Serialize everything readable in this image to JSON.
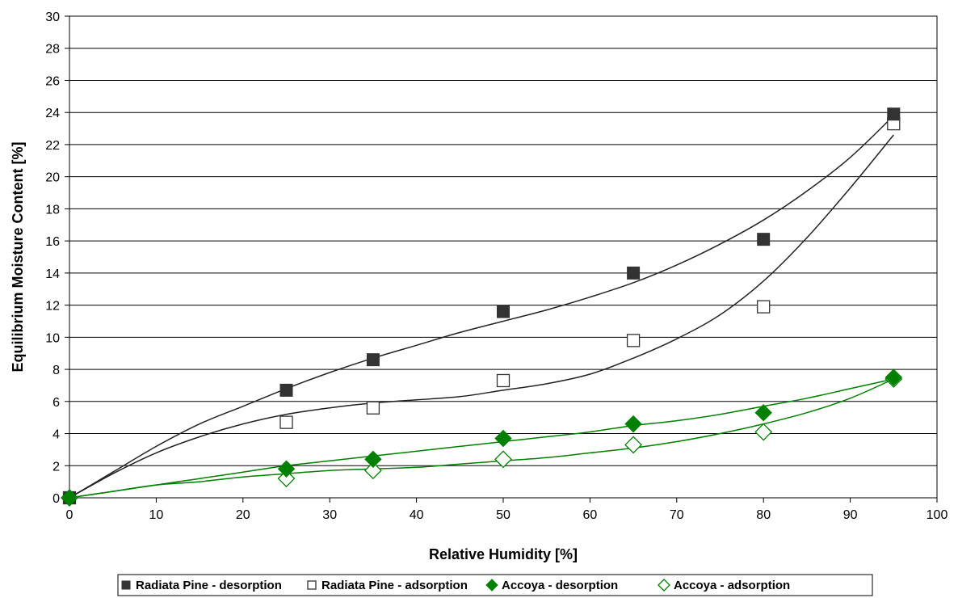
{
  "chart_data": {
    "type": "scatter",
    "title": "",
    "xlabel": "Relative Humidity [%]",
    "ylabel": "Equilibrium Moisture Content [%]",
    "xlim": [
      0,
      100
    ],
    "ylim": [
      0,
      30
    ],
    "x_ticks": [
      0,
      10,
      20,
      30,
      40,
      50,
      60,
      70,
      80,
      90,
      100
    ],
    "y_ticks": [
      0,
      2,
      4,
      6,
      8,
      10,
      12,
      14,
      16,
      18,
      20,
      22,
      24,
      26,
      28,
      30
    ],
    "grid": "horizontal",
    "legend_position": "bottom",
    "series": [
      {
        "name": "Radiata Pine - desorption",
        "marker": "square-filled",
        "color": "#333333",
        "x": [
          0,
          25,
          35,
          50,
          65,
          80,
          95
        ],
        "y": [
          0.0,
          6.7,
          8.6,
          11.6,
          14.0,
          16.1,
          23.9
        ],
        "trend": [
          [
            0,
            0
          ],
          [
            5,
            1.6
          ],
          [
            10,
            3.2
          ],
          [
            15,
            4.6
          ],
          [
            20,
            5.7
          ],
          [
            25,
            6.8
          ],
          [
            30,
            7.8
          ],
          [
            35,
            8.7
          ],
          [
            40,
            9.5
          ],
          [
            45,
            10.3
          ],
          [
            50,
            11.0
          ],
          [
            55,
            11.7
          ],
          [
            60,
            12.5
          ],
          [
            65,
            13.4
          ],
          [
            70,
            14.5
          ],
          [
            75,
            15.8
          ],
          [
            80,
            17.3
          ],
          [
            85,
            19.1
          ],
          [
            90,
            21.2
          ],
          [
            95,
            23.8
          ]
        ]
      },
      {
        "name": "Radiata Pine - adsorption",
        "marker": "square-open",
        "color": "#333333",
        "x": [
          0,
          25,
          35,
          50,
          65,
          80,
          95
        ],
        "y": [
          0.0,
          4.7,
          5.6,
          7.3,
          9.8,
          11.9,
          23.3
        ],
        "trend": [
          [
            0,
            0
          ],
          [
            5,
            1.5
          ],
          [
            10,
            2.8
          ],
          [
            15,
            3.8
          ],
          [
            20,
            4.6
          ],
          [
            25,
            5.2
          ],
          [
            30,
            5.6
          ],
          [
            35,
            5.9
          ],
          [
            40,
            6.1
          ],
          [
            45,
            6.3
          ],
          [
            50,
            6.7
          ],
          [
            55,
            7.1
          ],
          [
            60,
            7.7
          ],
          [
            65,
            8.7
          ],
          [
            70,
            9.9
          ],
          [
            75,
            11.4
          ],
          [
            80,
            13.5
          ],
          [
            85,
            16.2
          ],
          [
            90,
            19.3
          ],
          [
            95,
            22.6
          ]
        ]
      },
      {
        "name": "Accoya - desorption",
        "marker": "diamond-filled",
        "color": "#008000",
        "x": [
          0,
          25,
          35,
          50,
          65,
          80,
          95
        ],
        "y": [
          0.0,
          1.8,
          2.4,
          3.7,
          4.6,
          5.3,
          7.5
        ],
        "trend": [
          [
            0,
            0
          ],
          [
            5,
            0.4
          ],
          [
            10,
            0.8
          ],
          [
            15,
            1.2
          ],
          [
            20,
            1.6
          ],
          [
            25,
            2.0
          ],
          [
            30,
            2.3
          ],
          [
            35,
            2.6
          ],
          [
            40,
            2.9
          ],
          [
            45,
            3.2
          ],
          [
            50,
            3.5
          ],
          [
            55,
            3.8
          ],
          [
            60,
            4.1
          ],
          [
            65,
            4.5
          ],
          [
            70,
            4.8
          ],
          [
            75,
            5.2
          ],
          [
            80,
            5.7
          ],
          [
            85,
            6.2
          ],
          [
            90,
            6.8
          ],
          [
            95,
            7.4
          ]
        ]
      },
      {
        "name": "Accoya - adsorption",
        "marker": "diamond-open",
        "color": "#008000",
        "x": [
          0,
          25,
          35,
          50,
          65,
          80,
          95
        ],
        "y": [
          0.0,
          1.2,
          1.7,
          2.4,
          3.3,
          4.1,
          7.4
        ],
        "trend": [
          [
            0,
            0
          ],
          [
            5,
            0.4
          ],
          [
            10,
            0.8
          ],
          [
            15,
            1.0
          ],
          [
            20,
            1.3
          ],
          [
            25,
            1.5
          ],
          [
            30,
            1.7
          ],
          [
            35,
            1.8
          ],
          [
            40,
            1.9
          ],
          [
            45,
            2.1
          ],
          [
            50,
            2.3
          ],
          [
            55,
            2.5
          ],
          [
            60,
            2.8
          ],
          [
            65,
            3.1
          ],
          [
            70,
            3.5
          ],
          [
            75,
            4.0
          ],
          [
            80,
            4.6
          ],
          [
            85,
            5.3
          ],
          [
            90,
            6.2
          ],
          [
            95,
            7.4
          ]
        ]
      }
    ]
  }
}
